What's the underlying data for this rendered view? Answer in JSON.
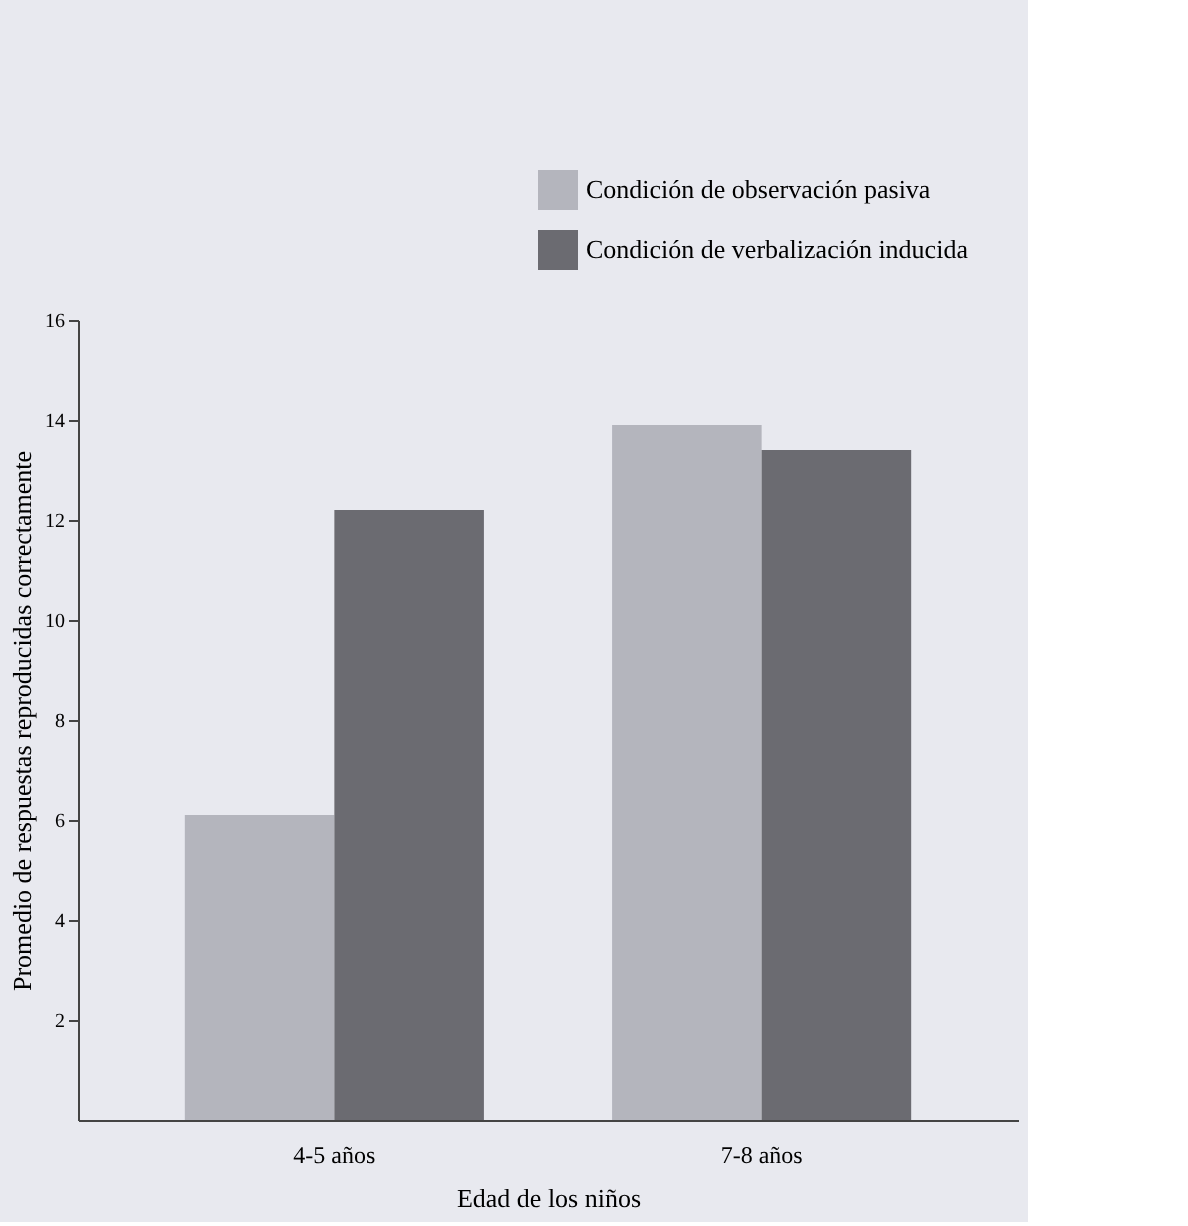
{
  "chart_data": {
    "type": "bar",
    "xlabel": "Edad de los niños",
    "ylabel": "Promedio de respuestas reproducidas correctamente",
    "categories": [
      "4-5 años",
      "7-8 años"
    ],
    "series": [
      {
        "name": "Condición de observación pasiva",
        "color": "#b4b5bd",
        "values": [
          6.1,
          13.9
        ]
      },
      {
        "name": "Condición de verbalización inducida",
        "color": "#6b6b71",
        "values": [
          12.2,
          13.4
        ]
      }
    ],
    "ylim": [
      0,
      16
    ],
    "yticks": [
      2,
      4,
      6,
      8,
      10,
      12,
      14,
      16
    ],
    "grid": false,
    "legend": "top right"
  }
}
